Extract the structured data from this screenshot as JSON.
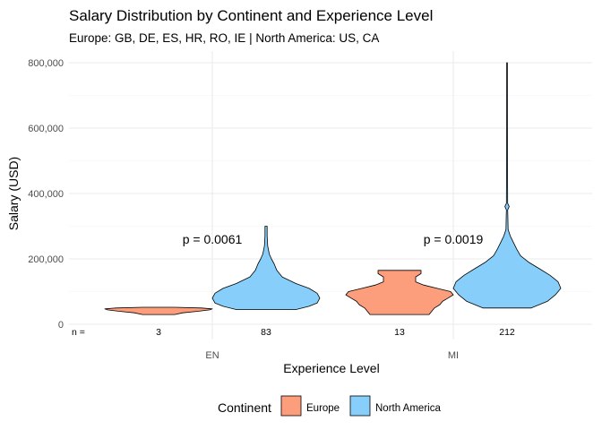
{
  "chart_data": {
    "type": "violin",
    "title": "Salary Distribution by Continent and Experience Level",
    "subtitle": "Europe: GB, DE, ES, HR, RO, IE | North America: US, CA",
    "xlabel": "Experience Level",
    "ylabel": "Salary (USD)",
    "categories": [
      "EN",
      "MI"
    ],
    "ylim": [
      0,
      800000
    ],
    "y_ticks": [
      0,
      200000,
      400000,
      600000,
      800000
    ],
    "y_tick_labels": [
      "0",
      "200,000",
      "400,000",
      "600,000",
      "800,000"
    ],
    "grid": true,
    "legend": {
      "title": "Continent",
      "position": "bottom",
      "entries": [
        {
          "name": "Europe",
          "color": "#FC9E7C"
        },
        {
          "name": "North America",
          "color": "#87CEFA"
        }
      ]
    },
    "n_prefix": "n =",
    "series": [
      {
        "name": "Europe",
        "color": "#FC9E7C",
        "counts": [
          "3",
          "13"
        ],
        "violins": [
          {
            "category": "EN",
            "ymin": 30000,
            "ymax": 52000,
            "profile": [
              [
                30000,
                0.3
              ],
              [
                35000,
                0.45
              ],
              [
                40000,
                0.75
              ],
              [
                44000,
                0.95
              ],
              [
                47000,
                1.0
              ],
              [
                50000,
                0.8
              ],
              [
                52000,
                0.3
              ]
            ]
          },
          {
            "category": "MI",
            "ymin": 30000,
            "ymax": 165000,
            "profile": [
              [
                30000,
                0.55
              ],
              [
                40000,
                0.6
              ],
              [
                50000,
                0.65
              ],
              [
                60000,
                0.75
              ],
              [
                70000,
                0.8
              ],
              [
                80000,
                0.9
              ],
              [
                90000,
                1.0
              ],
              [
                100000,
                0.95
              ],
              [
                110000,
                0.7
              ],
              [
                120000,
                0.45
              ],
              [
                130000,
                0.3
              ],
              [
                145000,
                0.3
              ],
              [
                155000,
                0.4
              ],
              [
                165000,
                0.4
              ]
            ]
          }
        ]
      },
      {
        "name": "North America",
        "color": "#87CEFA",
        "counts": [
          "83",
          "212"
        ],
        "violins": [
          {
            "category": "EN",
            "ymin": 45000,
            "ymax": 300000,
            "profile": [
              [
                45000,
                0.55
              ],
              [
                55000,
                0.8
              ],
              [
                65000,
                0.95
              ],
              [
                80000,
                1.0
              ],
              [
                95000,
                0.95
              ],
              [
                110000,
                0.8
              ],
              [
                125000,
                0.55
              ],
              [
                145000,
                0.3
              ],
              [
                165000,
                0.2
              ],
              [
                185000,
                0.15
              ],
              [
                200000,
                0.1
              ],
              [
                215000,
                0.06
              ],
              [
                240000,
                0.03
              ],
              [
                270000,
                0.02
              ],
              [
                300000,
                0.02
              ]
            ]
          },
          {
            "category": "MI",
            "ymin": 50000,
            "ymax": 800000,
            "profile": [
              [
                50000,
                0.45
              ],
              [
                70000,
                0.75
              ],
              [
                90000,
                0.9
              ],
              [
                110000,
                1.0
              ],
              [
                130000,
                0.95
              ],
              [
                150000,
                0.8
              ],
              [
                170000,
                0.6
              ],
              [
                190000,
                0.4
              ],
              [
                210000,
                0.25
              ],
              [
                230000,
                0.18
              ],
              [
                250000,
                0.12
              ],
              [
                270000,
                0.06
              ],
              [
                290000,
                0.02
              ],
              [
                330000,
                0.015
              ],
              [
                350000,
                0.012
              ],
              [
                360000,
                0.04
              ],
              [
                370000,
                0.012
              ],
              [
                450000,
                0.01
              ],
              [
                600000,
                0.008
              ],
              [
                800000,
                0.006
              ]
            ]
          }
        ]
      }
    ],
    "annotations": [
      {
        "category": "EN",
        "text": "p = 0.0061",
        "y": 260000
      },
      {
        "category": "MI",
        "text": "p = 0.0019",
        "y": 260000
      }
    ]
  }
}
